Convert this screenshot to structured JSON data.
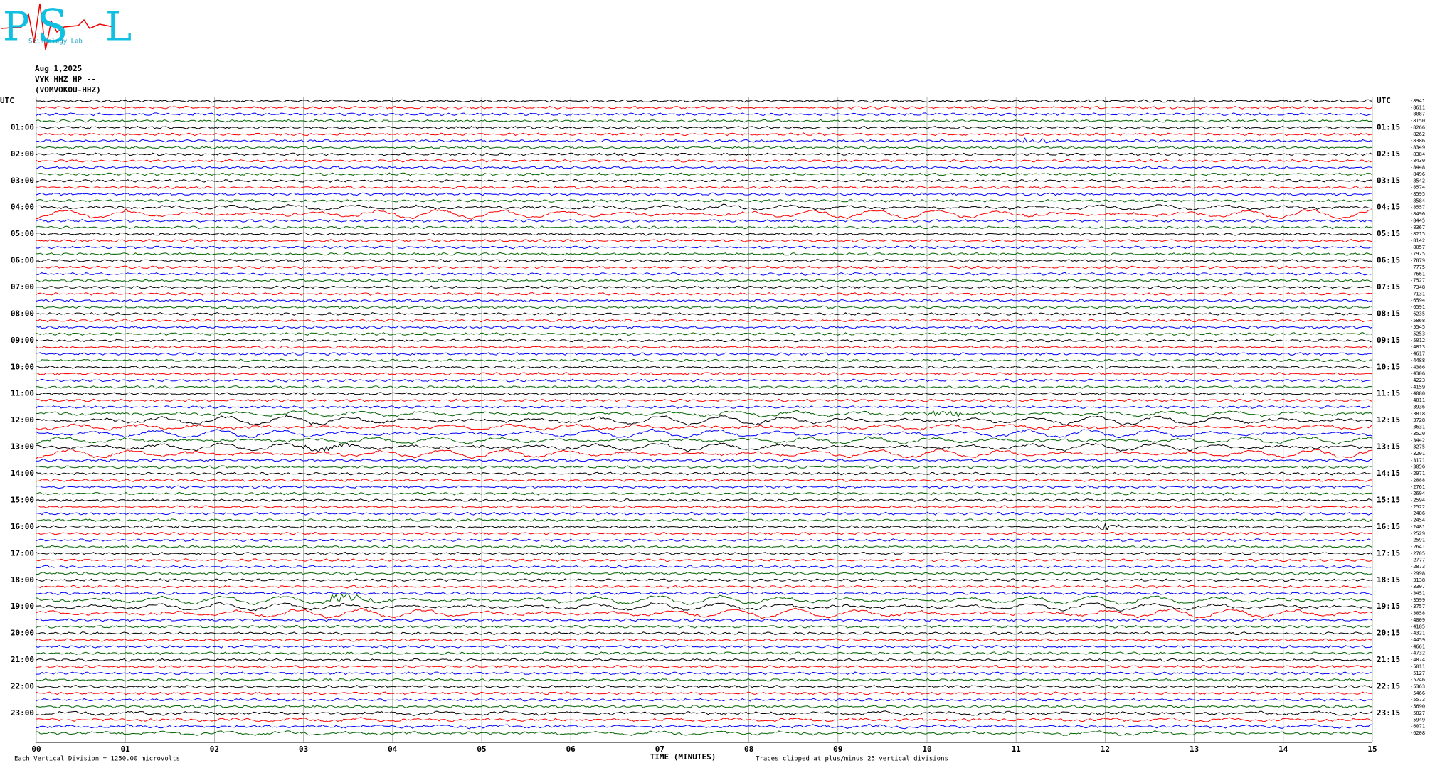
{
  "chart_data": {
    "type": "helicorder",
    "logo": {
      "letters": [
        "P",
        "S",
        "L"
      ],
      "subtitle": "Seismology Lab"
    },
    "date": "Aug 1,2025",
    "station": "VYK HHZ HP --",
    "station_name": "(VOMVOKOU-HHZ)",
    "left_labels": [
      "UTC",
      "01:00",
      "02:00",
      "03:00",
      "04:00",
      "05:00",
      "06:00",
      "07:00",
      "08:00",
      "09:00",
      "10:00",
      "11:00",
      "12:00",
      "13:00",
      "14:00",
      "15:00",
      "16:00",
      "17:00",
      "18:00",
      "19:00",
      "20:00",
      "21:00",
      "22:00",
      "23:00"
    ],
    "right_labels": [
      "UTC",
      "01:15",
      "02:15",
      "03:15",
      "04:15",
      "05:15",
      "06:15",
      "07:15",
      "08:15",
      "09:15",
      "10:15",
      "11:15",
      "12:15",
      "13:15",
      "14:15",
      "15:15",
      "16:15",
      "17:15",
      "18:15",
      "19:15",
      "20:15",
      "21:15",
      "22:15",
      "23:15"
    ],
    "offsets": [
      -8941,
      -8611,
      -8087,
      -8150,
      -8266,
      -8262,
      -8386,
      -8349,
      -8384,
      -8430,
      -8448,
      -8496,
      -8542,
      -8574,
      -8595,
      -8584,
      -8557,
      -8496,
      -8445,
      -8367,
      -8215,
      -8142,
      -8057,
      -7975,
      -7879,
      -7775,
      -7661,
      -7527,
      -7348,
      -7131,
      -6594,
      -6591,
      -6235,
      -5868,
      -5545,
      -5253,
      -5012,
      -4813,
      -4617,
      -4488,
      -4386,
      -4306,
      -4223,
      -4159,
      -4080,
      -4011,
      -3936,
      -3818,
      -3728,
      -3631,
      -3520,
      -3442,
      -3275,
      -3201,
      -3171,
      -3056,
      -2971,
      -2888,
      -2761,
      -2694,
      -2594,
      -2522,
      -2486,
      -2454,
      -2481,
      -2529,
      -2591,
      -2641,
      -2705,
      -2777,
      -2873,
      -2998,
      -3138,
      -3307,
      -3451,
      -3599,
      -3757,
      -3858,
      -4009,
      -4185,
      -4321,
      -4459,
      -4661,
      -4732,
      -4874,
      -5011,
      -5127,
      -5246,
      -5363,
      -5466,
      -5573,
      -5690,
      -5827,
      -5949,
      -6071,
      -6208
    ],
    "colors": [
      "#000000",
      "#ff0000",
      "#0000ff",
      "#006400"
    ],
    "xlabel": "TIME (MINUTES)",
    "xlim": [
      0,
      15
    ],
    "xticks": [
      {
        "value": 0,
        "label": "00"
      },
      {
        "value": 1,
        "label": "01"
      },
      {
        "value": 2,
        "label": "02"
      },
      {
        "value": 3,
        "label": "03"
      },
      {
        "value": 4,
        "label": "04"
      },
      {
        "value": 5,
        "label": "05"
      },
      {
        "value": 6,
        "label": "06"
      },
      {
        "value": 7,
        "label": "07"
      },
      {
        "value": 8,
        "label": "08"
      },
      {
        "value": 9,
        "label": "09"
      },
      {
        "value": 10,
        "label": "10"
      },
      {
        "value": 11,
        "label": "11"
      },
      {
        "value": 12,
        "label": "12"
      },
      {
        "value": 13,
        "label": "13"
      },
      {
        "value": 14,
        "label": "14"
      },
      {
        "value": 15,
        "label": "15"
      }
    ],
    "scale_note": "Each Vertical Division = 1250.00 microvolts",
    "clip_note": "Traces clipped at plus/minus 25 vertical divisions"
  }
}
